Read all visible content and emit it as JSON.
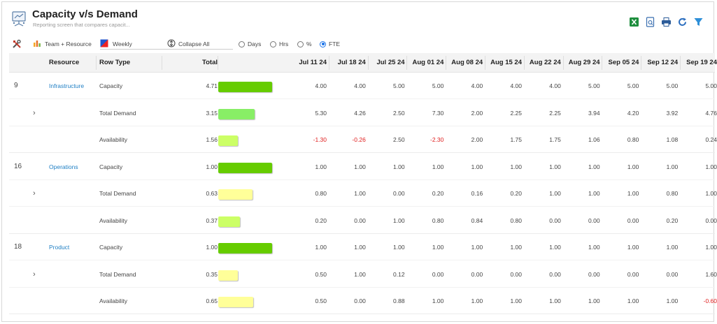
{
  "header": {
    "title": "Capacity v/s Demand",
    "subtitle": "Reporting screen that compares capacit..."
  },
  "tools": [
    "excel-icon",
    "report-icon",
    "print-icon",
    "refresh-icon",
    "filter-icon"
  ],
  "toolbar": {
    "group_by": "Team + Resource",
    "period": "Weekly",
    "collapse": "Collapse All",
    "units": [
      "Days",
      "Hrs",
      "%",
      "FTE"
    ],
    "selected_unit": "FTE"
  },
  "columns": {
    "resource": "Resource",
    "row_type": "Row Type",
    "total": "Total",
    "weeks": [
      "Jul 11 24",
      "Jul 18 24",
      "Jul 25 24",
      "Aug 01 24",
      "Aug 08 24",
      "Aug 15 24",
      "Aug 22 24",
      "Aug 29 24",
      "Sep 05 24",
      "Sep 12 24",
      "Sep 19 24"
    ]
  },
  "colors": {
    "capacity": "#66cc00",
    "demand_high": "#88ee66",
    "demand_low": "#ffff99",
    "availability": "#ccff66",
    "negative": "#e02020",
    "link": "#1f7fc4"
  },
  "groups": [
    {
      "id": "9",
      "name": "Infrastructure",
      "rows": [
        {
          "type": "Capacity",
          "total": "4.71",
          "fill": 1.0,
          "color": "#66cc00",
          "values": [
            "4.00",
            "4.00",
            "5.00",
            "5.00",
            "4.00",
            "4.00",
            "4.00",
            "5.00",
            "5.00",
            "5.00",
            "5.00"
          ]
        },
        {
          "type": "Total Demand",
          "total": "3.15",
          "fill": 0.67,
          "color": "#88ee66",
          "values": [
            "5.30",
            "4.26",
            "2.50",
            "7.30",
            "2.00",
            "2.25",
            "2.25",
            "3.94",
            "4.20",
            "3.92",
            "4.76"
          ]
        },
        {
          "type": "Availability",
          "total": "1.56",
          "fill": 0.36,
          "color": "#ccff66",
          "values": [
            "-1.30",
            "-0.26",
            "2.50",
            "-2.30",
            "2.00",
            "1.75",
            "1.75",
            "1.06",
            "0.80",
            "1.08",
            "0.24"
          ]
        }
      ]
    },
    {
      "id": "16",
      "name": "Operations",
      "rows": [
        {
          "type": "Capacity",
          "total": "1.00",
          "fill": 1.0,
          "color": "#66cc00",
          "values": [
            "1.00",
            "1.00",
            "1.00",
            "1.00",
            "1.00",
            "1.00",
            "1.00",
            "1.00",
            "1.00",
            "1.00",
            "1.00"
          ]
        },
        {
          "type": "Total Demand",
          "total": "0.63",
          "fill": 0.63,
          "color": "#ffff99",
          "values": [
            "0.80",
            "1.00",
            "0.00",
            "0.20",
            "0.16",
            "0.20",
            "1.00",
            "1.00",
            "1.00",
            "0.80",
            "1.00"
          ]
        },
        {
          "type": "Availability",
          "total": "0.37",
          "fill": 0.4,
          "color": "#ccff66",
          "values": [
            "0.20",
            "0.00",
            "1.00",
            "0.80",
            "0.84",
            "0.80",
            "0.00",
            "0.00",
            "0.00",
            "0.20",
            "0.00"
          ]
        }
      ]
    },
    {
      "id": "18",
      "name": "Product",
      "rows": [
        {
          "type": "Capacity",
          "total": "1.00",
          "fill": 1.0,
          "color": "#66cc00",
          "values": [
            "1.00",
            "1.00",
            "1.00",
            "1.00",
            "1.00",
            "1.00",
            "1.00",
            "1.00",
            "1.00",
            "1.00",
            "1.00"
          ]
        },
        {
          "type": "Total Demand",
          "total": "0.35",
          "fill": 0.37,
          "color": "#ffff99",
          "values": [
            "0.50",
            "1.00",
            "0.12",
            "0.00",
            "0.00",
            "0.00",
            "0.00",
            "0.00",
            "0.00",
            "0.00",
            "1.60"
          ]
        },
        {
          "type": "Availability",
          "total": "0.65",
          "fill": 0.65,
          "color": "#ffff99",
          "values": [
            "0.50",
            "0.00",
            "0.88",
            "1.00",
            "1.00",
            "1.00",
            "1.00",
            "1.00",
            "1.00",
            "1.00",
            "-0.60"
          ]
        }
      ]
    }
  ]
}
